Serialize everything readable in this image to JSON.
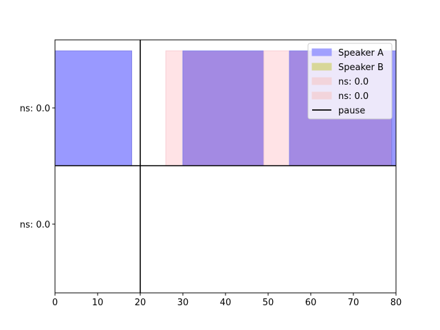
{
  "chart_data": {
    "type": "area",
    "xlim": [
      0,
      80
    ],
    "x_ticks": [
      0,
      10,
      20,
      30,
      40,
      50,
      60,
      70,
      80
    ],
    "y_tick_labels": [
      "ns: 0.0",
      "ns: 0.0"
    ],
    "grid": false,
    "legend": {
      "placement": "top-right",
      "entries": [
        {
          "label": "Speaker A",
          "kind": "patch",
          "color": "#9999ff"
        },
        {
          "label": "Speaker B",
          "kind": "patch",
          "color": "#d6d68f"
        },
        {
          "label": "ns: 0.0",
          "kind": "patch",
          "color": "#f3d2d8"
        },
        {
          "label": "ns: 0.0",
          "kind": "patch",
          "color": "#f3d2d8"
        },
        {
          "label": "pause",
          "kind": "line",
          "color": "#000000"
        }
      ]
    },
    "segments": [
      {
        "series": "Speaker A",
        "start": 0,
        "end": 18,
        "color": "#9999ff"
      },
      {
        "series": "ns: 0.0",
        "start": 26,
        "end": 30,
        "color": "#ffe3e6"
      },
      {
        "series": "overlap",
        "start": 30,
        "end": 49,
        "color": "#a38ae3"
      },
      {
        "series": "ns: 0.0",
        "start": 49,
        "end": 55,
        "color": "#ffe3e6"
      },
      {
        "series": "overlap",
        "start": 55,
        "end": 79,
        "color": "#a38ae3"
      },
      {
        "series": "Speaker A",
        "start": 79,
        "end": 80,
        "color": "#9999ff"
      }
    ],
    "pause_x": 20
  }
}
